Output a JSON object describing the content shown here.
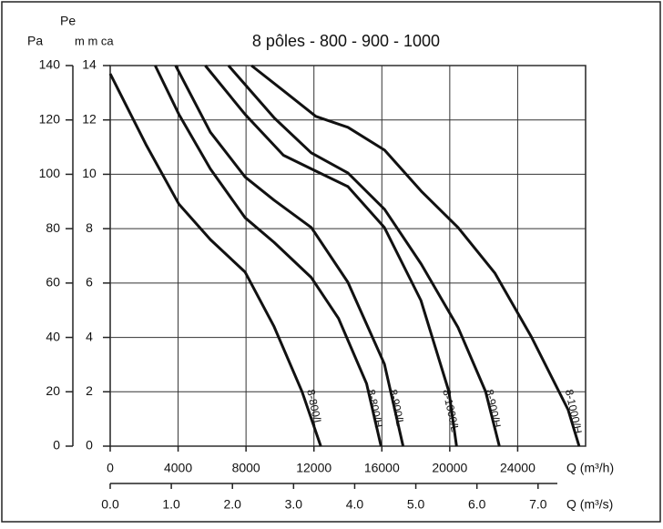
{
  "chart_data": {
    "type": "line",
    "title": "8 pôles - 800 - 900 - 1000",
    "y_label": "Pa",
    "y2_label_top": "Pe",
    "y2_label": "m m ca",
    "x_label": "Q (m³/h)",
    "x2_label": "Q (m³/s)",
    "xlim": [
      0,
      28000
    ],
    "xticks": [
      0,
      4000,
      8000,
      12000,
      16000,
      20000,
      24000
    ],
    "x2lim": [
      0,
      7.7778
    ],
    "x2ticks": [
      {
        "value": 0,
        "label": "0.0"
      },
      {
        "value": 1,
        "label": "1.0"
      },
      {
        "value": 2,
        "label": "2.0"
      },
      {
        "value": 3,
        "label": "3.0"
      },
      {
        "value": 4,
        "label": "4.0"
      },
      {
        "value": 5,
        "label": "5.0"
      },
      {
        "value": 6,
        "label": "6.0"
      },
      {
        "value": 7,
        "label": "7.0"
      }
    ],
    "ylim": [
      0,
      140
    ],
    "yticks": [
      0,
      20,
      40,
      60,
      80,
      100,
      120,
      140
    ],
    "y2lim": [
      0,
      14
    ],
    "y2ticks": [
      0,
      2,
      4,
      6,
      8,
      10,
      12,
      14
    ],
    "grid": true,
    "series": [
      {
        "name": "8-800/L",
        "color": "#111111",
        "x": [
          0,
          2100,
          4050,
          5900,
          7950,
          9650,
          11300,
          12400
        ],
        "values": [
          137,
          111,
          89,
          76,
          64,
          44,
          20,
          0
        ]
      },
      {
        "name": "8-800/H",
        "color": "#111111",
        "x": [
          2650,
          4050,
          5900,
          7950,
          9650,
          11850,
          13450,
          15100,
          15950
        ],
        "values": [
          140,
          122,
          102,
          84,
          75,
          62,
          47,
          23,
          0
        ]
      },
      {
        "name": "8-900/L",
        "color": "#111111",
        "x": [
          3850,
          5900,
          7950,
          9650,
          11850,
          14000,
          16150,
          17250
        ],
        "values": [
          140,
          115.5,
          99,
          90.5,
          80.4,
          60.3,
          30.2,
          0
        ]
      },
      {
        "name": "8-1000/L",
        "color": "#111111",
        "x": [
          5600,
          7950,
          10200,
          11850,
          14000,
          16150,
          18300,
          19950,
          20400
        ],
        "values": [
          140,
          122,
          107,
          102,
          95.5,
          80.4,
          53.6,
          20.1,
          0
        ]
      },
      {
        "name": "8-900/H",
        "color": "#111111",
        "x": [
          6970,
          9680,
          11840,
          14000,
          16160,
          18320,
          20490,
          22110,
          22920
        ],
        "values": [
          140,
          120.6,
          107.9,
          100.5,
          87.1,
          67,
          43.6,
          20.1,
          0
        ]
      },
      {
        "name": "8-1000/H",
        "color": "#111111",
        "x": [
          8320,
          10220,
          12110,
          14000,
          16160,
          18320,
          20490,
          22650,
          24810,
          26970,
          27620
        ],
        "values": [
          140,
          130.7,
          121.3,
          117.3,
          108.9,
          93.8,
          80.4,
          63.7,
          40.2,
          13.4,
          0
        ]
      }
    ]
  }
}
